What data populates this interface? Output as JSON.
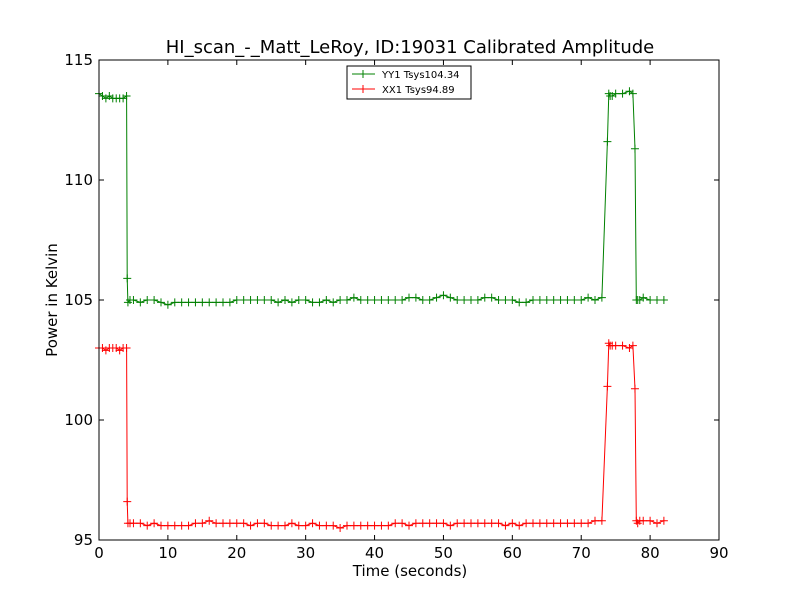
{
  "chart_data": {
    "type": "line",
    "title": "HI_scan_-_Matt_LeRoy, ID:19031 Calibrated Amplitude",
    "xlabel": "Time (seconds)",
    "ylabel": "Power in Kelvin",
    "xlim": [
      0,
      90
    ],
    "ylim": [
      95,
      115
    ],
    "xticks": [
      "0",
      "10",
      "20",
      "30",
      "40",
      "50",
      "60",
      "70",
      "80",
      "90"
    ],
    "yticks": [
      "95",
      "100",
      "105",
      "110",
      "115"
    ],
    "grid": false,
    "legend_position": "top-center",
    "series": [
      {
        "name": "YY1 Tsys104.34",
        "color": "#008000",
        "x": [
          0,
          0.5,
          1,
          1.5,
          2,
          2.5,
          3,
          3.5,
          4,
          4.1,
          4.2,
          4.5,
          5,
          6,
          7,
          8,
          9,
          10,
          11,
          12,
          13,
          14,
          15,
          16,
          17,
          18,
          19,
          20,
          21,
          22,
          23,
          24,
          25,
          26,
          27,
          28,
          29,
          30,
          31,
          32,
          33,
          34,
          35,
          36,
          37,
          38,
          39,
          40,
          41,
          42,
          43,
          44,
          45,
          46,
          47,
          48,
          49,
          50,
          51,
          52,
          53,
          54,
          55,
          56,
          57,
          58,
          59,
          60,
          61,
          62,
          63,
          64,
          65,
          66,
          67,
          68,
          69,
          70,
          71,
          72,
          73,
          73.8,
          74,
          74.2,
          74.5,
          75,
          76,
          77,
          77.5,
          77.8,
          78,
          78.2,
          78.5,
          79,
          80,
          81,
          82
        ],
        "values": [
          113.6,
          113.5,
          113.4,
          113.5,
          113.4,
          113.4,
          113.4,
          113.4,
          113.5,
          105.9,
          104.9,
          105.0,
          105.0,
          104.9,
          105.0,
          105.0,
          104.9,
          104.8,
          104.9,
          104.9,
          104.9,
          104.9,
          104.9,
          104.9,
          104.9,
          104.9,
          104.9,
          105.0,
          105.0,
          105.0,
          105.0,
          105.0,
          105.0,
          104.9,
          105.0,
          104.9,
          105.0,
          105.0,
          104.9,
          104.9,
          105.0,
          104.9,
          105.0,
          105.0,
          105.1,
          105.0,
          105.0,
          105.0,
          105.0,
          105.0,
          105.0,
          105.0,
          105.1,
          105.1,
          105.0,
          105.0,
          105.1,
          105.2,
          105.1,
          105.0,
          105.0,
          105.0,
          105.0,
          105.1,
          105.1,
          105.0,
          105.0,
          105.0,
          104.9,
          104.9,
          105.0,
          105.0,
          105.0,
          105.0,
          105.0,
          105.0,
          105.0,
          105.0,
          105.1,
          105.0,
          105.1,
          111.6,
          113.6,
          113.5,
          113.5,
          113.6,
          113.6,
          113.7,
          113.6,
          111.3,
          105.0,
          105.0,
          105.0,
          105.1,
          105.0,
          105.0,
          105.0
        ]
      },
      {
        "name": "XX1 Tsys94.89",
        "color": "#ff0000",
        "x": [
          0,
          0.5,
          1,
          1.5,
          2,
          2.5,
          3,
          3.5,
          4,
          4.1,
          4.2,
          4.5,
          5,
          6,
          7,
          8,
          9,
          10,
          11,
          12,
          13,
          14,
          15,
          16,
          17,
          18,
          19,
          20,
          21,
          22,
          23,
          24,
          25,
          26,
          27,
          28,
          29,
          30,
          31,
          32,
          33,
          34,
          35,
          36,
          37,
          38,
          39,
          40,
          41,
          42,
          43,
          44,
          45,
          46,
          47,
          48,
          49,
          50,
          51,
          52,
          53,
          54,
          55,
          56,
          57,
          58,
          59,
          60,
          61,
          62,
          63,
          64,
          65,
          66,
          67,
          68,
          69,
          70,
          71,
          72,
          73,
          73.8,
          74,
          74.2,
          74.5,
          75,
          76,
          77,
          77.5,
          77.8,
          78,
          78.2,
          78.5,
          79,
          80,
          81,
          82
        ],
        "values": [
          103.0,
          103.0,
          102.9,
          103.0,
          103.0,
          103.0,
          102.9,
          103.0,
          103.0,
          96.6,
          95.7,
          95.7,
          95.7,
          95.7,
          95.6,
          95.7,
          95.6,
          95.6,
          95.6,
          95.6,
          95.6,
          95.7,
          95.7,
          95.8,
          95.7,
          95.7,
          95.7,
          95.7,
          95.7,
          95.6,
          95.7,
          95.7,
          95.6,
          95.6,
          95.6,
          95.7,
          95.6,
          95.6,
          95.7,
          95.6,
          95.6,
          95.6,
          95.5,
          95.6,
          95.6,
          95.6,
          95.6,
          95.6,
          95.6,
          95.6,
          95.7,
          95.7,
          95.6,
          95.7,
          95.7,
          95.7,
          95.7,
          95.7,
          95.6,
          95.7,
          95.7,
          95.7,
          95.7,
          95.7,
          95.7,
          95.7,
          95.6,
          95.7,
          95.6,
          95.7,
          95.7,
          95.7,
          95.7,
          95.7,
          95.7,
          95.7,
          95.7,
          95.7,
          95.7,
          95.8,
          95.8,
          101.4,
          103.2,
          103.1,
          103.1,
          103.1,
          103.1,
          103.0,
          103.1,
          101.3,
          95.8,
          95.7,
          95.8,
          95.8,
          95.8,
          95.7,
          95.8
        ]
      }
    ]
  }
}
